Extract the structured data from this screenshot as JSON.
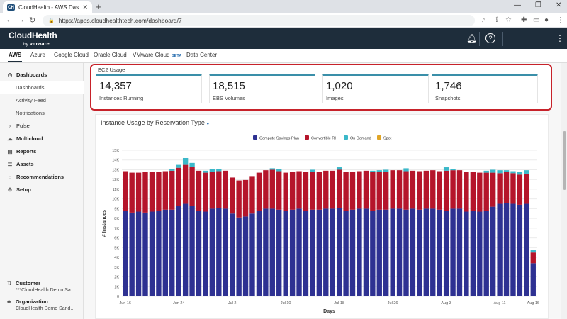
{
  "browser": {
    "tab_title": "CloudHealth - AWS Dashboard",
    "favicon_text": "CH",
    "url": "https://apps.cloudhealthtech.com/dashboard/7"
  },
  "header": {
    "logo": "CloudHealth",
    "logo_by": "by",
    "logo_brand": "vmware"
  },
  "cloud_tabs": [
    "AWS",
    "Azure",
    "Google Cloud",
    "Oracle Cloud",
    "VMware Cloud",
    "Data Center"
  ],
  "beta_label": "BETA",
  "sidebar": {
    "items": [
      {
        "label": "Dashboards",
        "icon": "dashboard-icon"
      },
      {
        "label": "Dashboards"
      },
      {
        "label": "Activity Feed"
      },
      {
        "label": "Notifications"
      },
      {
        "label": "Pulse",
        "icon": "chevron-right-icon"
      },
      {
        "label": "Multicloud",
        "icon": "multicloud-icon"
      },
      {
        "label": "Reports",
        "icon": "reports-icon"
      },
      {
        "label": "Assets",
        "icon": "assets-icon"
      },
      {
        "label": "Recommendations",
        "icon": "bulb-icon"
      },
      {
        "label": "Setup",
        "icon": "gear-icon"
      }
    ],
    "customer_label": "Customer",
    "customer_value": "***CloudHealth Demo Sa...",
    "org_label": "Organization",
    "org_value": "CloudHealth Demo Sand..."
  },
  "ec2": {
    "title": "EC2 Usage",
    "cards": [
      {
        "value": "14,357",
        "label": "Instances Running"
      },
      {
        "value": "18,515",
        "label": "EBS Volumes"
      },
      {
        "value": "1,020",
        "label": "Images"
      },
      {
        "value": "1,746",
        "label": "Snapshots"
      }
    ],
    "accent": "#3a8fa9",
    "highlight": "#c7222a"
  },
  "chart_title": "Instance Usage by Reservation Type",
  "chart_data": {
    "type": "bar",
    "stacked": true,
    "title": "Instance Usage by Reservation Type",
    "xlabel": "Days",
    "ylabel": "# Instances",
    "ylim": [
      0,
      15000
    ],
    "yticks": [
      "0",
      "1K",
      "2K",
      "3K",
      "4K",
      "5K",
      "6K",
      "7K",
      "8K",
      "9K",
      "10K",
      "11K",
      "12K",
      "13K",
      "14K",
      "15K"
    ],
    "xticks": [
      "Jun 16",
      "Jun 24",
      "Jul 2",
      "Jul 10",
      "Jul 18",
      "Jul 26",
      "Aug 3",
      "Aug 11",
      "Aug 16"
    ],
    "xtick_index": [
      0,
      8,
      16,
      24,
      32,
      40,
      48,
      56,
      61
    ],
    "series": [
      {
        "name": "Compute Savings Plan",
        "color": "#2e3192",
        "values": [
          8800,
          8600,
          8700,
          8600,
          8700,
          8800,
          8900,
          8900,
          9300,
          9500,
          9300,
          8800,
          8700,
          9000,
          9100,
          9000,
          8500,
          8100,
          8200,
          8500,
          8800,
          9000,
          9000,
          8900,
          8800,
          8900,
          9000,
          8800,
          8900,
          8900,
          9000,
          9000,
          9100,
          8800,
          8900,
          9000,
          9000,
          8800,
          8900,
          8900,
          9000,
          9000,
          8900,
          9000,
          8900,
          9000,
          9000,
          8900,
          8800,
          9000,
          9000,
          8700,
          8800,
          8700,
          8800,
          9200,
          9500,
          9600,
          9500,
          9400,
          9500,
          3400
        ]
      },
      {
        "name": "Convertible RI",
        "color": "#b5152b",
        "values": [
          4050,
          4100,
          4000,
          4200,
          4100,
          4000,
          3950,
          4000,
          3900,
          4000,
          4000,
          4100,
          4000,
          3800,
          3750,
          3900,
          3700,
          3800,
          3750,
          3850,
          3900,
          3950,
          4000,
          3950,
          3900,
          3900,
          3850,
          3950,
          3900,
          3900,
          3900,
          3900,
          3900,
          3950,
          3850,
          3850,
          3900,
          3950,
          3900,
          3900,
          3950,
          3950,
          3950,
          3900,
          3950,
          3900,
          3950,
          3950,
          4100,
          3950,
          3950,
          4050,
          3950,
          4000,
          3900,
          3500,
          3150,
          3150,
          3150,
          3100,
          3100,
          1100
        ]
      },
      {
        "name": "On Demand",
        "color": "#3bb8c9",
        "values": [
          0,
          0,
          0,
          0,
          0,
          0,
          0,
          200,
          300,
          700,
          400,
          0,
          200,
          300,
          250,
          0,
          0,
          0,
          0,
          0,
          0,
          0,
          150,
          200,
          0,
          0,
          0,
          0,
          200,
          0,
          0,
          0,
          250,
          0,
          0,
          0,
          0,
          150,
          150,
          200,
          0,
          0,
          300,
          0,
          0,
          0,
          0,
          0,
          350,
          150,
          0,
          0,
          0,
          0,
          200,
          300,
          300,
          200,
          200,
          300,
          350,
          250
        ]
      },
      {
        "name": "Spot",
        "color": "#e0a526",
        "values": [
          0,
          0,
          0,
          0,
          0,
          0,
          0,
          0,
          0,
          0,
          0,
          0,
          0,
          0,
          0,
          0,
          0,
          0,
          0,
          0,
          0,
          0,
          0,
          0,
          0,
          0,
          0,
          0,
          0,
          0,
          0,
          0,
          0,
          0,
          0,
          0,
          0,
          0,
          0,
          0,
          0,
          0,
          0,
          0,
          0,
          0,
          0,
          0,
          0,
          0,
          0,
          0,
          0,
          0,
          0,
          0,
          0,
          0,
          0,
          0,
          0,
          0
        ]
      }
    ],
    "legend_position": "top-center"
  }
}
